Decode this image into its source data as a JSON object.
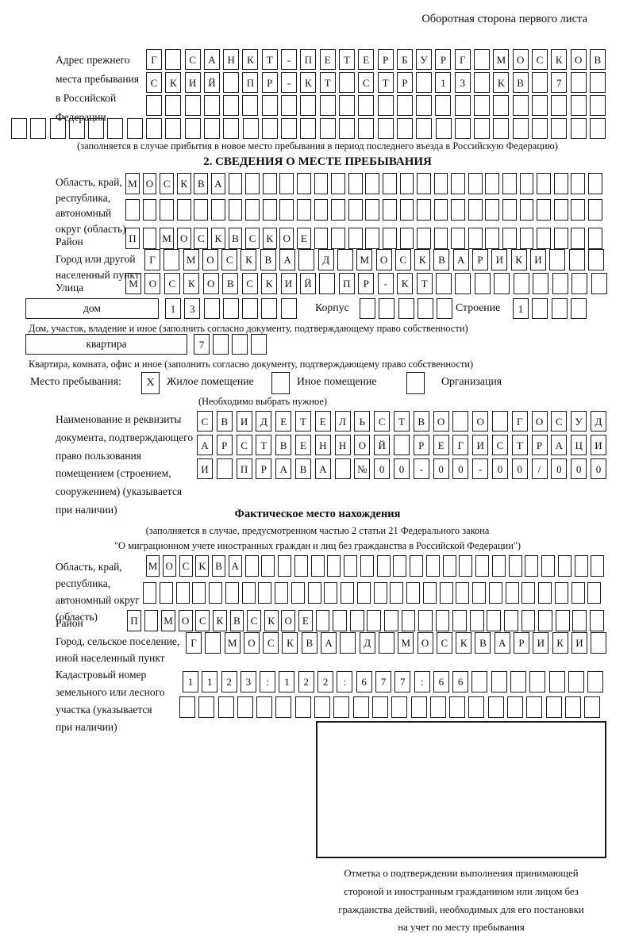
{
  "header": {
    "note": "Оборотная сторона первого листа"
  },
  "prev_address": {
    "label_lines": [
      "Адрес прежнего",
      "места пребывания",
      "в Российской",
      "Федерации"
    ],
    "note": "(заполняется в случае прибытия в новое место пребывания в период последнего въезда в Российскую Федерацию)"
  },
  "section2": {
    "title": "2. СВЕДЕНИЯ О МЕСТЕ ПРЕБЫВАНИЯ",
    "oblast_label_lines": [
      "Область, край,",
      "республика,",
      "автономный",
      "округ (область)"
    ],
    "raion_label": "Район",
    "gorod_label_lines": [
      "Город или другой",
      "населенный пункт"
    ],
    "ulitsa_label": "Улица",
    "dom_label": "дом",
    "korpus_label": "Корпус",
    "stroenie_label": "Строение",
    "dom_note": "Дом, участок, владение и иное (заполнить согласно документу, подтверждающему право собственности)",
    "kvartira_label": "квартира",
    "kvartira_note": "Квартира, комната, офис и иное (заполнить согласно документу, подтверждающему право собственности)",
    "mesto_label": "Место пребывания:",
    "mesto_checked": "X",
    "mesto_options": [
      "Жилое помещение",
      "Иное помещение",
      "Организация"
    ],
    "mesto_note": "(Необходимо выбрать нужное)",
    "doc_label_lines": [
      "Наименование и реквизиты",
      "документа, подтверждающего",
      "право пользования",
      "помещением (строением,",
      "сооружением) (указывается",
      "при наличии)"
    ]
  },
  "fact": {
    "title": "Фактическое место нахождения",
    "note_line1": "(заполняется в случае, предусмотренном частью 2 статьи 21 Федерального закона",
    "note_line2": "\"О миграционном учете иностранных граждан и лиц без гражданства в Российской Федерации\")",
    "oblast_label_lines": [
      "Область, край,",
      "республика,",
      "автономный округ",
      "(область)"
    ],
    "raion_label": "Район",
    "gorod_label_lines": [
      "Город, сельское поселение,",
      "иной населенный пункт"
    ],
    "kadastr_label_lines": [
      "Кадастровый номер",
      "земельного или лесного",
      "участка (указывается",
      "при наличии)"
    ],
    "stamp_caption_lines": [
      "Отметка о подтверждении выполнения принимающей",
      "стороной и иностранным гражданином или лицом без",
      "гражданства действий, необходимых для его постановки",
      "на учет по месту пребывания"
    ]
  },
  "cells": {
    "s1r1": {
      "len": 24,
      "text": "Г САНКТ-ПЕТЕРБУРГ МОСКОВ"
    },
    "s1r2": {
      "len": 24,
      "text": "СКИЙ ПР-КТ СТР 13 КВ 7"
    },
    "s1r3": {
      "len": 24,
      "text": ""
    },
    "s1r4": {
      "len": 31,
      "text": ""
    },
    "s2_oblast_a": {
      "len": 28,
      "text": "МОСКВА"
    },
    "s2_oblast_b": {
      "len": 28,
      "text": ""
    },
    "s2_raion": {
      "len": 28,
      "text": "П МОСКВСКОЕ"
    },
    "s2_gorod": {
      "len": 24,
      "text": "Г МОСКВА Д МОСКВАРИКИ"
    },
    "s2_ulitsa": {
      "len": 25,
      "text": "МОСКОВСКИЙ ПР-КТ"
    },
    "dom": {
      "len": 7,
      "text": "13"
    },
    "korpus": {
      "len": 5,
      "text": ""
    },
    "stroenie": {
      "len": 4,
      "text": "1"
    },
    "kvartira": {
      "len": 4,
      "text": "7"
    },
    "doc1": {
      "len": 21,
      "text": "СВИДЕТЕЛЬСТВО О ГОСУД"
    },
    "doc2": {
      "len": 21,
      "text": "АРСТВЕННОЙ РЕГИСТРАЦИ"
    },
    "doc3": {
      "len": 21,
      "text": "И ПРАВА №00-00-00/000"
    },
    "f_oblast_a": {
      "len": 28,
      "text": "МОСКВА"
    },
    "f_oblast_b": {
      "len": 28,
      "text": ""
    },
    "f_raion": {
      "len": 28,
      "text": "П МОСКВСКОЕ"
    },
    "f_gorod": {
      "len": 22,
      "text": "Г МОСКВА Д МОСКВАРИКИ"
    },
    "f_kad1": {
      "len": 22,
      "text": "1123:122:677:66"
    },
    "f_kad2": {
      "len": 22,
      "text": ""
    }
  }
}
